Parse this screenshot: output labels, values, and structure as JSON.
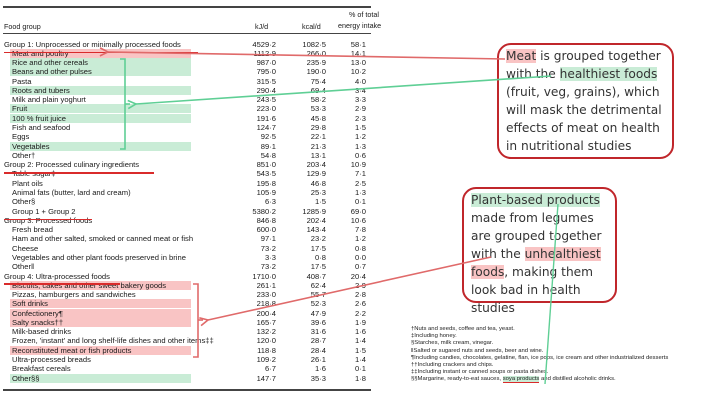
{
  "table": {
    "headers": {
      "food_group": "Food group",
      "kj": "kJ/d",
      "kcal": "kcal/d",
      "pct_line1": "% of total",
      "pct_line2": "energy intake"
    },
    "rows": [
      {
        "label": "Group 1: Unprocessed or minimally processed foods",
        "kj": "4529·2",
        "kcal": "1082·5",
        "pct": "58·1",
        "type": "group"
      },
      {
        "label": "Meat and poultry",
        "kj": "1112·9",
        "kcal": "266·0",
        "pct": "14·1",
        "type": "item",
        "highlight": "red"
      },
      {
        "label": "Rice and other cereals",
        "kj": "987·0",
        "kcal": "235·9",
        "pct": "13·0",
        "type": "item",
        "highlight": "green"
      },
      {
        "label": "Beans and other pulses",
        "kj": "795·0",
        "kcal": "190·0",
        "pct": "10·2",
        "type": "item",
        "highlight": "green"
      },
      {
        "label": "Pasta",
        "kj": "315·5",
        "kcal": "75·4",
        "pct": "4·0",
        "type": "item"
      },
      {
        "label": "Roots and tubers",
        "kj": "290·4",
        "kcal": "69·4",
        "pct": "3·4",
        "type": "item",
        "highlight": "green"
      },
      {
        "label": "Milk and plain yoghurt",
        "kj": "243·5",
        "kcal": "58·2",
        "pct": "3·3",
        "type": "item"
      },
      {
        "label": "Fruit",
        "kj": "223·0",
        "kcal": "53·3",
        "pct": "2·9",
        "type": "item",
        "highlight": "green"
      },
      {
        "label": "100 % fruit juice",
        "kj": "191·6",
        "kcal": "45·8",
        "pct": "2·3",
        "type": "item",
        "highlight": "green"
      },
      {
        "label": "Fish and seafood",
        "kj": "124·7",
        "kcal": "29·8",
        "pct": "1·5",
        "type": "item"
      },
      {
        "label": "Eggs",
        "kj": "92·5",
        "kcal": "22·1",
        "pct": "1·2",
        "type": "item"
      },
      {
        "label": "Vegetables",
        "kj": "89·1",
        "kcal": "21·3",
        "pct": "1·3",
        "type": "item",
        "highlight": "green"
      },
      {
        "label": "Other†",
        "kj": "54·8",
        "kcal": "13·1",
        "pct": "0·6",
        "type": "item"
      },
      {
        "label": "Group 2: Processed culinary ingredients",
        "kj": "851·0",
        "kcal": "203·4",
        "pct": "10·9",
        "type": "group"
      },
      {
        "label": "Table sugar‡",
        "kj": "543·5",
        "kcal": "129·9",
        "pct": "7·1",
        "type": "item"
      },
      {
        "label": "Plant oils",
        "kj": "195·8",
        "kcal": "46·8",
        "pct": "2·5",
        "type": "item"
      },
      {
        "label": "Animal fats (butter, lard and cream)",
        "kj": "105·9",
        "kcal": "25·3",
        "pct": "1·3",
        "type": "item"
      },
      {
        "label": "Other§",
        "kj": "6·3",
        "kcal": "1·5",
        "pct": "0·1",
        "type": "item"
      },
      {
        "label": "Group 1 + Group 2",
        "kj": "5380·2",
        "kcal": "1285·9",
        "pct": "69·0",
        "type": "item"
      },
      {
        "label": "Group 3: Processed foods",
        "kj": "846·8",
        "kcal": "202·4",
        "pct": "10·6",
        "type": "group"
      },
      {
        "label": "Fresh bread",
        "kj": "600·0",
        "kcal": "143·4",
        "pct": "7·8",
        "type": "item"
      },
      {
        "label": "Ham and other salted, smoked or canned meat or fish",
        "kj": "97·1",
        "kcal": "23·2",
        "pct": "1·2",
        "type": "item"
      },
      {
        "label": "Cheese",
        "kj": "73·2",
        "kcal": "17·5",
        "pct": "0·8",
        "type": "item"
      },
      {
        "label": "Vegetables and other plant foods preserved in brine",
        "kj": "3·3",
        "kcal": "0·8",
        "pct": "0·0",
        "type": "item"
      },
      {
        "label": "Other‖",
        "kj": "73·2",
        "kcal": "17·5",
        "pct": "0·7",
        "type": "item"
      },
      {
        "label": "Group 4: Ultra-processed foods",
        "kj": "1710·0",
        "kcal": "408·7",
        "pct": "20·4",
        "type": "group"
      },
      {
        "label": "Biscuits, cakes and other sweet bakery goods",
        "kj": "261·1",
        "kcal": "62·4",
        "pct": "2·9",
        "type": "item",
        "highlight": "red"
      },
      {
        "label": "Pizzas, hamburgers and sandwiches",
        "kj": "233·0",
        "kcal": "55·7",
        "pct": "2·8",
        "type": "item"
      },
      {
        "label": "Soft drinks",
        "kj": "218·8",
        "kcal": "52·3",
        "pct": "2·6",
        "type": "item",
        "highlight": "red"
      },
      {
        "label": "Confectionery¶",
        "kj": "200·4",
        "kcal": "47·9",
        "pct": "2·2",
        "type": "item",
        "highlight": "red"
      },
      {
        "label": "Salty snacks††",
        "kj": "165·7",
        "kcal": "39·6",
        "pct": "1·9",
        "type": "item",
        "highlight": "red"
      },
      {
        "label": "Milk-based drinks",
        "kj": "132·2",
        "kcal": "31·6",
        "pct": "1·6",
        "type": "item"
      },
      {
        "label": "Frozen, 'instant' and long shelf-life dishes and other items‡‡",
        "kj": "120·0",
        "kcal": "28·7",
        "pct": "1·4",
        "type": "item"
      },
      {
        "label": "Reconstituted meat or fish products",
        "kj": "118·8",
        "kcal": "28·4",
        "pct": "1·5",
        "type": "item",
        "highlight": "red"
      },
      {
        "label": "Ultra-processed breads",
        "kj": "109·2",
        "kcal": "26·1",
        "pct": "1·4",
        "type": "item"
      },
      {
        "label": "Breakfast cereals",
        "kj": "6·7",
        "kcal": "1·6",
        "pct": "0·1",
        "type": "item"
      },
      {
        "label": "Other§§",
        "kj": "147·7",
        "kcal": "35·3",
        "pct": "1·8",
        "type": "item",
        "highlight": "green"
      }
    ]
  },
  "footnotes": [
    "†Nuts and seeds, coffee and tea, yeast.",
    "‡Including honey.",
    "§Starches, milk cream, vinegar.",
    "‖Salted or sugared nuts and seeds, beer and wine.",
    "¶Including candies, chocolates, gelatine, flan, ice pops, ice cream and other industrialized desserts",
    "††Including crackers and chips.",
    "‡‡Including instant or canned soups or pasta dishes.",
    "§§Margarine, ready-to-eat sauces, "
  ],
  "footnote_last": {
    "highlight": "soya products",
    "tail": " and distilled alcoholic drinks."
  },
  "callout_meat": {
    "w1": "Meat",
    "t1": " is grouped together with the ",
    "w2": "healthiest foods",
    "t2": " (fruit, veg, grains), which will mask the detrimental effects of meat on health in nutritional studies"
  },
  "callout_plant": {
    "w1": "Plant-based products",
    "t1": " made from legumes are grouped together with the ",
    "w2": "unhealthiest foods",
    "t2": ", making them look bad in health studies"
  },
  "colors": {
    "red_highlight": "#f9c4c4",
    "green_highlight": "#c9ecd6",
    "red_line": "#e06a6a",
    "green_line": "#5fcf95",
    "callout_border": "#c0262b",
    "underline_red": "#d92b2b"
  }
}
